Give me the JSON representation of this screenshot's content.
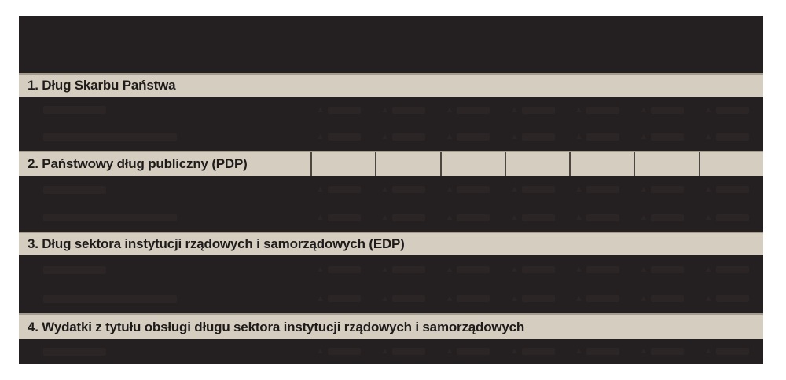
{
  "document": {
    "background_color": "#ffffff",
    "table": {
      "colors": {
        "table_background": "#241f20",
        "section_row_background": "#d5cec0",
        "section_row_top_border": "#a49c8c",
        "section_text": "#1e1b1a",
        "column_separator": "#4c4641",
        "illegible_text": "#2b2526"
      },
      "data_column_count": 7,
      "ghost_marker": "▲",
      "sections": [
        {
          "label": "1. Dług Skarbu Państwa",
          "data_row_count": 2,
          "column_separators_visible": false
        },
        {
          "label": "2. Państwowy dług publiczny (PDP)",
          "data_row_count": 2,
          "column_separators_visible": true
        },
        {
          "label": "3. Dług sektora instytucji rządowych i samorządowych (EDP)",
          "data_row_count": 2,
          "column_separators_visible": false
        },
        {
          "label": "4. Wydatki z tytułu obsługi długu sektora instytucji rządowych i samorządowych",
          "data_row_count": 1,
          "column_separators_visible": false
        }
      ]
    }
  }
}
